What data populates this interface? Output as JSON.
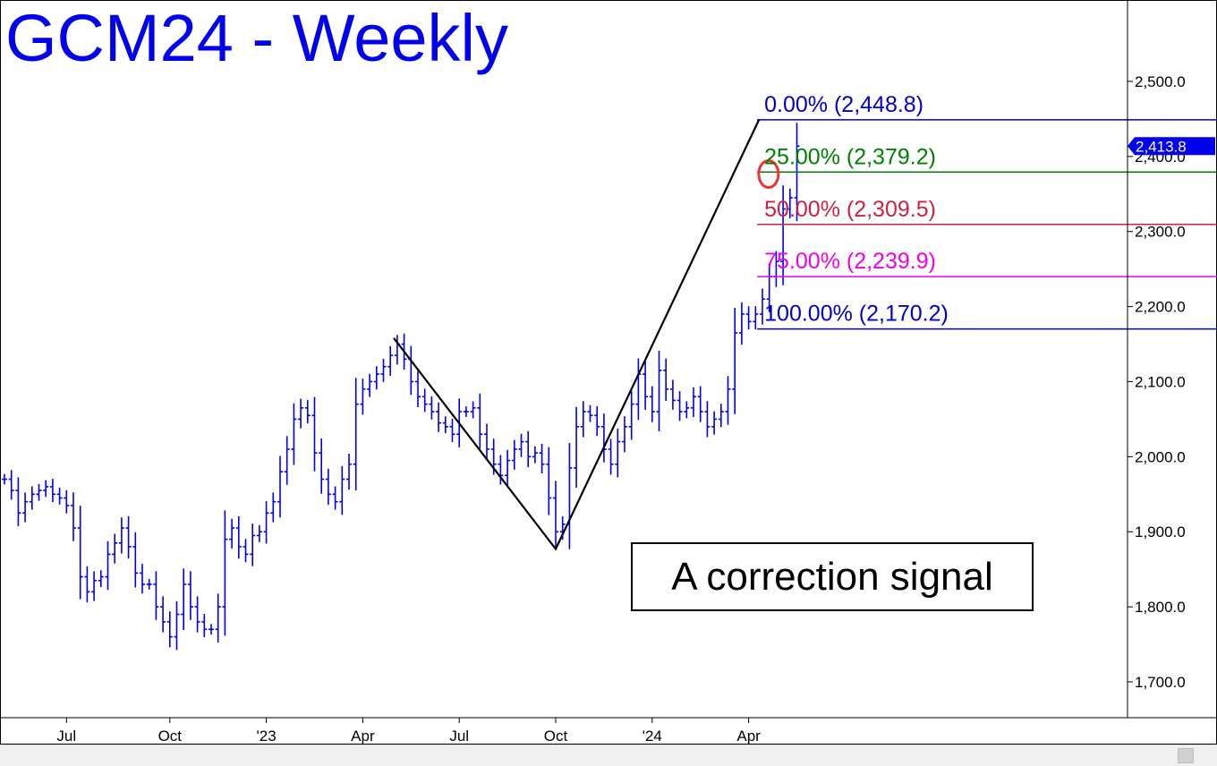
{
  "title": "GCM24 - Weekly",
  "colors": {
    "price": "#0000ee",
    "title": "#0000ee",
    "zigzag": "#000000",
    "fib_0": "#0000cc",
    "fib_25": "#008000",
    "fib_50": "#cc2244",
    "fib_75": "#ee00ee",
    "fib_100": "#0000cc",
    "marker": "#ee3333",
    "last_price_tag": "#0000ee"
  },
  "callout": "A correction signal",
  "last_price": "2,413.8",
  "chart_data": {
    "type": "ohlc",
    "title": "GCM24 - Weekly",
    "y_axis": {
      "range": [
        1650,
        2590
      ],
      "ticks": [
        "1,700.0",
        "1,800.0",
        "1,900.0",
        "2,000.0",
        "2,100.0",
        "2,200.0",
        "2,300.0",
        "2,400.0",
        "2,500.0"
      ],
      "tick_values": [
        1700,
        1800,
        1900,
        2000,
        2100,
        2200,
        2300,
        2400,
        2500
      ],
      "side": "right"
    },
    "x_axis": {
      "ticks": [
        "Jul",
        "Oct",
        "'23",
        "Apr",
        "Jul",
        "Oct",
        "'24",
        "Apr"
      ],
      "tick_week_index": [
        9,
        24,
        38,
        52,
        66,
        80,
        94,
        108
      ]
    },
    "fib_levels": [
      {
        "label": "0.00% (2,448.8)",
        "value": 2448.8,
        "color_key": "fib_0"
      },
      {
        "label": "25.00% (2,379.2)",
        "value": 2379.2,
        "color_key": "fib_25"
      },
      {
        "label": "50.00% (2,309.5)",
        "value": 2309.5,
        "color_key": "fib_50"
      },
      {
        "label": "75.00% (2,239.9)",
        "value": 2239.9,
        "color_key": "fib_75"
      },
      {
        "label": "100.00% (2,170.2)",
        "value": 2170.2,
        "color_key": "fib_100"
      }
    ],
    "zigzag": [
      {
        "week": 56.5,
        "price": 2158
      },
      {
        "week": 80,
        "price": 1877
      },
      {
        "week": 109.5,
        "price": 2448.8
      }
    ],
    "marker": {
      "week": 110.5,
      "price": 2379
    },
    "ohlc_close_series": [
      1970,
      1955,
      1925,
      1940,
      1950,
      1955,
      1960,
      1950,
      1945,
      1935,
      1905,
      1840,
      1820,
      1835,
      1840,
      1870,
      1885,
      1905,
      1880,
      1845,
      1830,
      1830,
      1800,
      1780,
      1760,
      1790,
      1830,
      1800,
      1780,
      1770,
      1770,
      1800,
      1890,
      1905,
      1880,
      1870,
      1895,
      1900,
      1925,
      1940,
      1980,
      2010,
      2050,
      2065,
      2055,
      2005,
      1970,
      1950,
      1940,
      1970,
      1990,
      2070,
      2090,
      2100,
      2110,
      2120,
      2135,
      2150,
      2130,
      2100,
      2080,
      2070,
      2060,
      2045,
      2040,
      2030,
      2060,
      2060,
      2065,
      2030,
      2010,
      1990,
      1975,
      1995,
      2010,
      2020,
      2000,
      2005,
      1990,
      1945,
      1900,
      1910,
      1985,
      2040,
      2060,
      2055,
      2040,
      2010,
      1990,
      2020,
      2040,
      2070,
      2110,
      2080,
      2060,
      2115,
      2090,
      2075,
      2060,
      2065,
      2080,
      2060,
      2040,
      2050,
      2060,
      2090,
      2165,
      2190,
      2180,
      2190,
      2210,
      2240,
      2260,
      2330,
      2345,
      2413.8
    ]
  }
}
